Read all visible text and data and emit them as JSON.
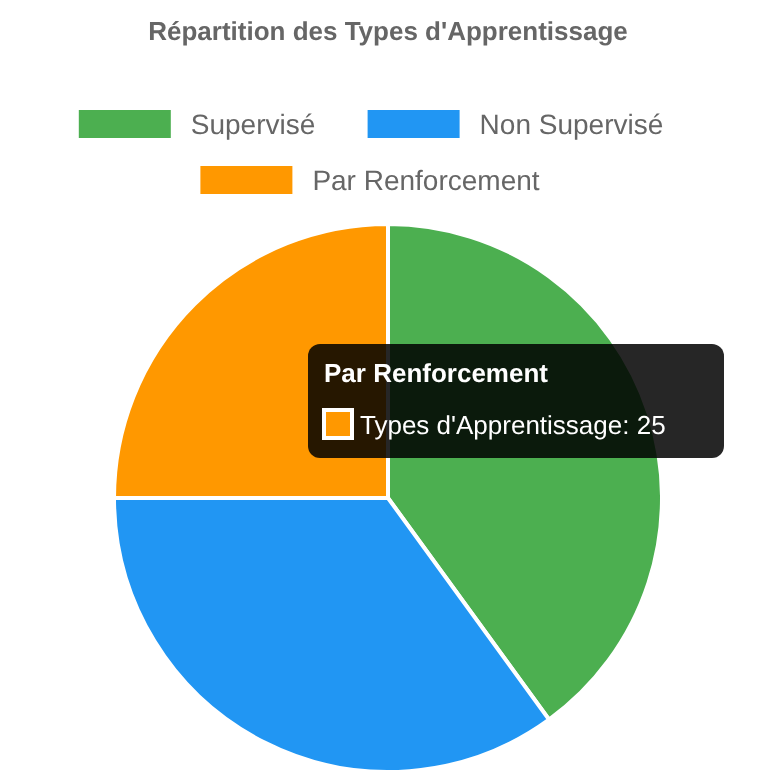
{
  "chart_data": {
    "type": "pie",
    "title": "Répartition des Types d'Apprentissage",
    "categories": [
      "Supervisé",
      "Non Supervisé",
      "Par Renforcement"
    ],
    "values": [
      40,
      35,
      25
    ],
    "colors": [
      "#4caf50",
      "#2196f3",
      "#ff9800"
    ],
    "legend": "top",
    "annotations": [
      "Par Renforcement",
      "Types d'Apprentissage: 25"
    ]
  }
}
